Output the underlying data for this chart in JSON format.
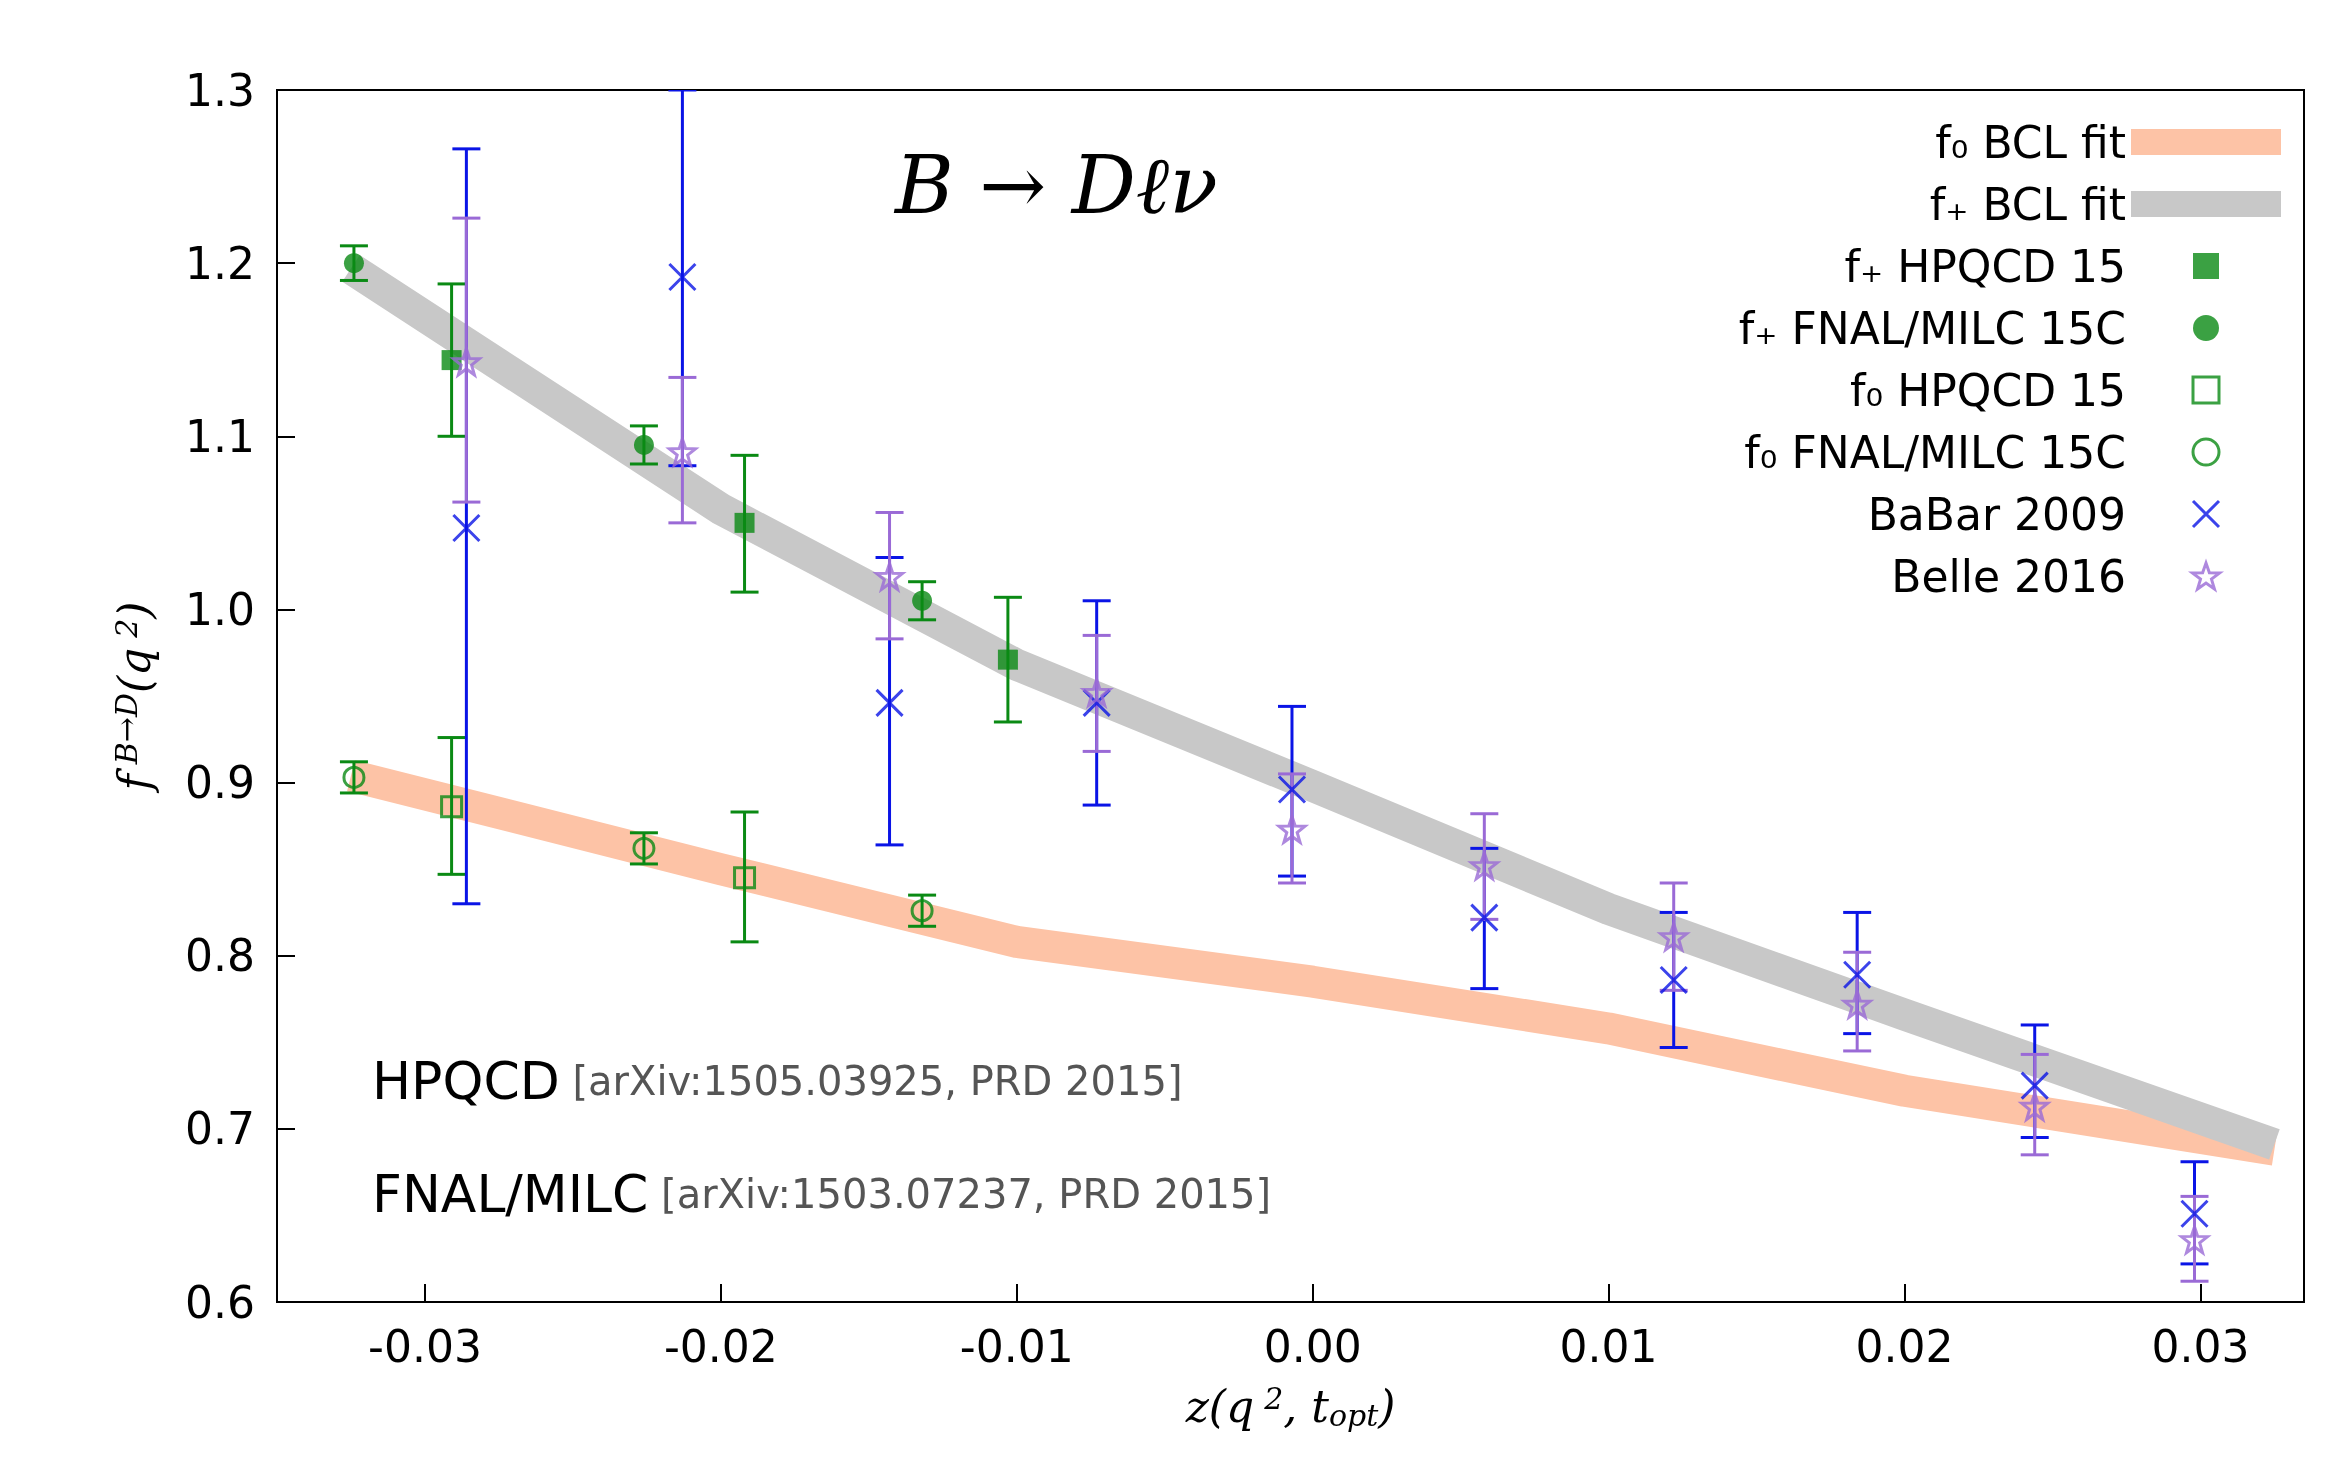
{
  "chart_data": {
    "type": "scatter",
    "title": "B → Dℓν",
    "xlabel": "z(q$^{2}$, t$_{opt}$)",
    "ylabel": "f$^{B→D}$(q$^{2}$)",
    "xlim": [
      -0.035,
      0.0335
    ],
    "ylim": [
      0.6,
      1.3
    ],
    "xticks": [
      {
        "value": -0.03,
        "label": "-0.03"
      },
      {
        "value": -0.02,
        "label": "-0.02"
      },
      {
        "value": -0.01,
        "label": "-0.01"
      },
      {
        "value": 0,
        "label": "0.00"
      },
      {
        "value": 0.01,
        "label": "0.01"
      },
      {
        "value": 0.02,
        "label": "0.02"
      },
      {
        "value": 0.03,
        "label": "0.03"
      }
    ],
    "yticks": [
      0.6,
      0.7,
      0.8,
      0.9,
      {
        "value": 1.0,
        "label": "1.0"
      },
      1.1,
      1.2,
      1.3
    ],
    "grid": false,
    "legend": "top right",
    "series": [
      {
        "name": "f₀ BCL fit",
        "type": "line",
        "color": "#fdc3a6",
        "x": [
          -0.0325,
          -0.02,
          -0.01,
          0,
          0.01,
          0.02,
          0.0325
        ],
        "values": [
          0.904,
          0.85,
          0.808,
          0.785,
          0.758,
          0.722,
          0.688
        ]
      },
      {
        "name": "f₊ BCL fit",
        "type": "line",
        "color": "#c8c8c8",
        "x": [
          -0.0325,
          -0.02,
          -0.01,
          0,
          0.01,
          0.02,
          0.0325
        ],
        "values": [
          1.197,
          1.058,
          0.968,
          0.898,
          0.827,
          0.766,
          0.691
        ]
      },
      {
        "name": "f₊ HPQCD 15",
        "color": "#0a8a14",
        "marker": "square",
        "x": [
          -0.0291,
          -0.0192,
          -0.0103
        ],
        "values": [
          1.144,
          1.05,
          0.971
        ],
        "errors": [
          [
            1.1,
            1.188
          ],
          [
            1.01,
            1.089
          ],
          [
            0.935,
            1.007
          ]
        ]
      },
      {
        "name": "f₊ FNAL/MILC 15C",
        "color": "#0a8a14",
        "marker": "circle",
        "x": [
          -0.0324,
          -0.0226,
          -0.0132
        ],
        "values": [
          1.2,
          1.095,
          1.005
        ],
        "errors": [
          [
            1.19,
            1.21
          ],
          [
            1.084,
            1.106
          ],
          [
            0.994,
            1.016
          ]
        ]
      },
      {
        "name": "f₀ HPQCD 15",
        "color": "#0a8a14",
        "marker": "square-open",
        "x": [
          -0.0291,
          -0.0192
        ],
        "values": [
          0.886,
          0.845
        ],
        "errors": [
          [
            0.847,
            0.926
          ],
          [
            0.808,
            0.883
          ]
        ]
      },
      {
        "name": "f₀ FNAL/MILC 15C",
        "color": "#0a8a14",
        "marker": "circle-open",
        "x": [
          -0.0324,
          -0.0226,
          -0.0132
        ],
        "values": [
          0.903,
          0.862,
          0.826
        ],
        "errors": [
          [
            0.894,
            0.912
          ],
          [
            0.853,
            0.871
          ],
          [
            0.817,
            0.835
          ]
        ]
      },
      {
        "name": "BaBar 2009",
        "color": "#0a14e6",
        "marker": "cross",
        "x": [
          -0.0286,
          -0.0213,
          -0.0143,
          -0.0073,
          -0.0007,
          0.0058,
          0.0122,
          0.0184,
          0.0244,
          0.0298
        ],
        "values": [
          1.047,
          1.192,
          0.946,
          0.946,
          0.896,
          0.822,
          0.786,
          0.789,
          0.725,
          0.651
        ],
        "errors": [
          [
            0.83,
            1.266
          ],
          [
            1.083,
            1.3
          ],
          [
            0.864,
            1.03
          ],
          [
            0.887,
            1.005
          ],
          [
            0.846,
            0.944
          ],
          [
            0.781,
            0.862
          ],
          [
            0.747,
            0.825
          ],
          [
            0.755,
            0.825
          ],
          [
            0.695,
            0.76
          ],
          [
            0.622,
            0.681
          ]
        ]
      },
      {
        "name": "Belle 2016",
        "color": "#9a6ad6",
        "marker": "star",
        "x": [
          -0.0286,
          -0.0213,
          -0.0143,
          -0.0073,
          -0.0007,
          0.0058,
          0.0122,
          0.0184,
          0.0244,
          0.0298
        ],
        "values": [
          1.143,
          1.091,
          1.019,
          0.952,
          0.873,
          0.852,
          0.811,
          0.772,
          0.713,
          0.636
        ],
        "errors": [
          [
            1.062,
            1.226
          ],
          [
            1.05,
            1.134
          ],
          [
            0.983,
            1.056
          ],
          [
            0.918,
            0.985
          ],
          [
            0.842,
            0.905
          ],
          [
            0.821,
            0.882
          ],
          [
            0.78,
            0.842
          ],
          [
            0.745,
            0.802
          ],
          [
            0.685,
            0.743
          ],
          [
            0.612,
            0.661
          ]
        ]
      }
    ],
    "annotations": [
      "HPQCD [arXiv:1505.03925, PRD 2015]",
      "FNAL/MILC [arXiv:1503.07237, PRD 2015]"
    ]
  }
}
